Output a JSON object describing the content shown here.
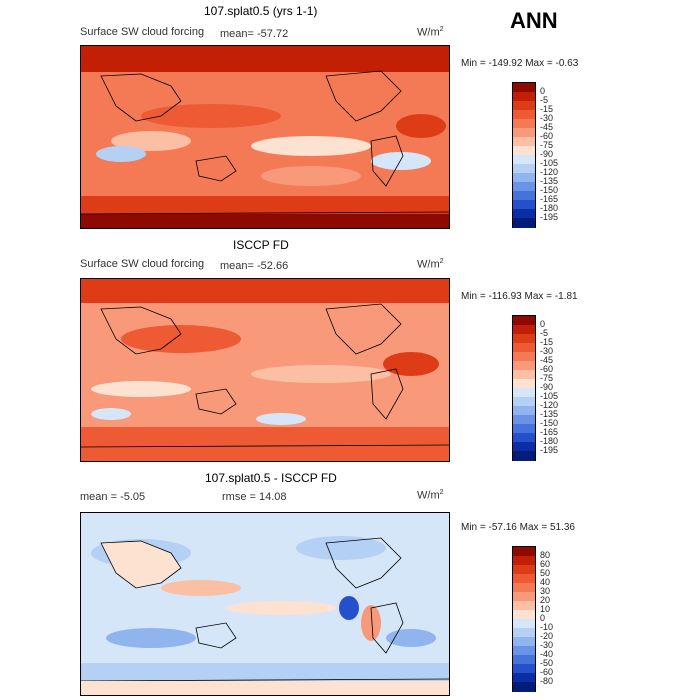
{
  "season": "ANN",
  "chart_data": [
    {
      "type": "heatmap",
      "title": "107.splat0.5 (yrs 1-1)",
      "variable": "Surface SW cloud forcing",
      "stat_label": "mean=",
      "stat_value": "-57.72",
      "units": "W/m",
      "units_exp": "2",
      "min_label": "Min =",
      "min": "-149.92",
      "max_label": "Max =",
      "max": "-0.63",
      "levels": [
        "0",
        "-5",
        "-15",
        "-30",
        "-45",
        "-60",
        "-75",
        "-90",
        "-105",
        "-120",
        "-135",
        "-150",
        "-165",
        "-180",
        "-195"
      ],
      "colors": [
        "#8e0a00",
        "#c21f05",
        "#de3c16",
        "#ee5a33",
        "#f47a55",
        "#f89a7a",
        "#fbbfa4",
        "#fde2d2",
        "#d6e6f9",
        "#b4d0f4",
        "#8fb4ee",
        "#6a92e6",
        "#4672dc",
        "#2450cc",
        "#0a2ea6",
        "#061c7a"
      ]
    },
    {
      "type": "heatmap",
      "title": "ISCCP FD",
      "variable": "Surface SW cloud forcing",
      "stat_label": "mean=",
      "stat_value": "-52.66",
      "units": "W/m",
      "units_exp": "2",
      "min_label": "Min =",
      "min": "-116.93",
      "max_label": "Max =",
      "max": "-1.81",
      "levels": [
        "0",
        "-5",
        "-15",
        "-30",
        "-45",
        "-60",
        "-75",
        "-90",
        "-105",
        "-120",
        "-135",
        "-150",
        "-165",
        "-180",
        "-195"
      ],
      "colors": [
        "#8e0a00",
        "#c21f05",
        "#de3c16",
        "#ee5a33",
        "#f47a55",
        "#f89a7a",
        "#fbbfa4",
        "#fde2d2",
        "#d6e6f9",
        "#b4d0f4",
        "#8fb4ee",
        "#6a92e6",
        "#4672dc",
        "#2450cc",
        "#0a2ea6",
        "#061c7a"
      ]
    },
    {
      "type": "heatmap",
      "title": "107.splat0.5 - ISCCP FD",
      "mean_label": "mean =",
      "mean_value": "-5.05",
      "rmse_label": "rmse =",
      "rmse_value": "14.08",
      "units": "W/m",
      "units_exp": "2",
      "min_label": "Min =",
      "min": "-57.16",
      "max_label": "Max =",
      "max": "51.36",
      "levels": [
        "80",
        "60",
        "50",
        "40",
        "30",
        "20",
        "10",
        "0",
        "-10",
        "-20",
        "-30",
        "-40",
        "-50",
        "-60",
        "-80"
      ],
      "colors": [
        "#8e0a00",
        "#c21f05",
        "#de3c16",
        "#ee5a33",
        "#f47a55",
        "#f89a7a",
        "#fbbfa4",
        "#fde2d2",
        "#d6e6f9",
        "#b4d0f4",
        "#8fb4ee",
        "#6a92e6",
        "#4672dc",
        "#2450cc",
        "#0a2ea6",
        "#061c7a"
      ]
    }
  ]
}
